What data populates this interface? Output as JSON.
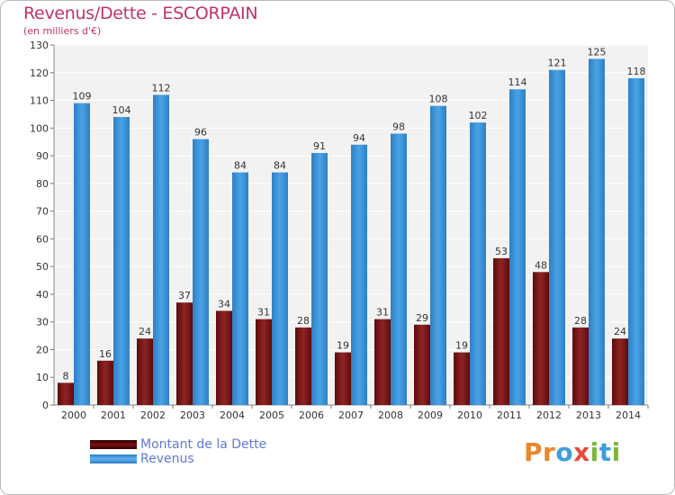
{
  "header": {
    "title": "Revenus/Dette - ESCORPAIN",
    "subtitle": "(en milliers d'€)"
  },
  "colors": {
    "debt": "#8b1e1e",
    "revenue": "#3f97dd",
    "title": "#c0336b",
    "legend_text": "#5f7ad6"
  },
  "legend": {
    "items": [
      {
        "label": "Montant de la Dette",
        "color": "#7a1212"
      },
      {
        "label": "Revenus",
        "color": "#3f97dd"
      }
    ]
  },
  "logo": {
    "text": "Proxiti",
    "letter_colors": [
      "#e8892b",
      "#e8892b",
      "#3c9ee0",
      "#e34b3b",
      "#7ab83a",
      "#3c9ee0",
      "#7ab83a"
    ]
  },
  "chart_data": {
    "type": "bar",
    "categories": [
      "2000",
      "2001",
      "2002",
      "2003",
      "2004",
      "2005",
      "2006",
      "2007",
      "2008",
      "2009",
      "2010",
      "2011",
      "2012",
      "2013",
      "2014"
    ],
    "series": [
      {
        "name": "Montant de la Dette",
        "values": [
          8,
          16,
          24,
          37,
          34,
          31,
          28,
          19,
          31,
          29,
          19,
          53,
          48,
          28,
          24
        ]
      },
      {
        "name": "Revenus",
        "values": [
          109,
          104,
          112,
          96,
          84,
          84,
          91,
          94,
          98,
          108,
          102,
          114,
          121,
          125,
          118
        ]
      }
    ],
    "ylim": [
      0,
      130
    ],
    "yticks": [
      0,
      10,
      20,
      30,
      40,
      50,
      60,
      70,
      80,
      90,
      100,
      110,
      120,
      130
    ],
    "grid": true,
    "legend_position": "bottom-left"
  }
}
